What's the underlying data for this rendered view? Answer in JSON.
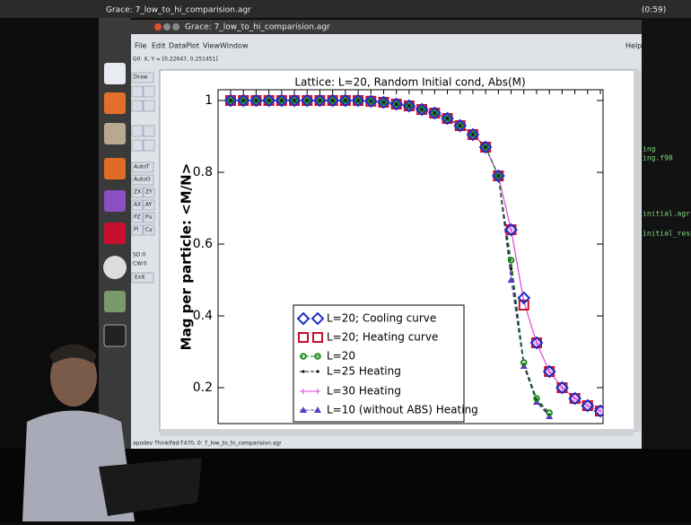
{
  "desktop": {
    "top_bar_title": "Grace: 7_low_to_hi_comparision.agr",
    "clock": "(0:59)"
  },
  "window": {
    "title": "Grace: 7_low_to_hi_comparision.agr",
    "menu": [
      "File",
      "Edit",
      "Data",
      "Plot",
      "View",
      "Window"
    ],
    "help": "Help",
    "coords": "G0: X, Y = [0.22647, 0.251451]",
    "tools": [
      "Draw",
      "AutoT",
      "AutoO",
      "ZX",
      "ZY",
      "AX",
      "AY",
      "PZ",
      "Pu",
      "Pl",
      "Cy"
    ],
    "info": [
      "SD:0",
      "CW:0"
    ],
    "exit": "Exit",
    "status": "apodev ThinkPad-T470, 0: 7_low_to_hi_comparision.agr"
  },
  "terminal": {
    "lines": [
      "ing",
      "ing.f90",
      "initial.agr",
      "initial_resp"
    ]
  },
  "chart_data": {
    "type": "line",
    "title": "Lattice: L=20,    Random Initial cond,    Abs(M)",
    "y_label": "Mag per particle:  <M/N>",
    "categories": [
      null,
      null,
      null,
      null,
      null,
      null,
      null,
      null,
      null,
      null,
      null,
      null,
      null,
      null,
      null,
      null,
      null,
      null,
      null,
      null,
      null,
      null,
      null,
      null,
      null,
      null,
      null,
      null,
      null,
      null
    ],
    "ylim": [
      0.1,
      1.03
    ],
    "yticks": [
      0.2,
      0.4,
      0.6,
      0.8,
      1
    ],
    "legend": "lower-left",
    "series": [
      {
        "name": "L=20; Cooling curve",
        "color": "#1d2fc8",
        "marker": "diamond",
        "line": false,
        "values": [
          1,
          1,
          1,
          1,
          1,
          1,
          1,
          1,
          1,
          1,
          1,
          0.998,
          0.995,
          0.99,
          0.985,
          0.975,
          0.965,
          0.95,
          0.93,
          0.905,
          0.87,
          0.79,
          0.64,
          0.45,
          0.325,
          0.245,
          0.2,
          0.17,
          0.15,
          0.135
        ]
      },
      {
        "name": "L=20; Heating curve",
        "color": "#c8102e",
        "marker": "square",
        "line": false,
        "values": [
          1,
          1,
          1,
          1,
          1,
          1,
          1,
          1,
          1,
          1,
          1,
          0.998,
          0.995,
          0.99,
          0.985,
          0.975,
          0.965,
          0.95,
          0.93,
          0.905,
          0.87,
          0.79,
          0.64,
          0.43,
          0.325,
          0.245,
          0.2,
          0.17,
          0.15,
          0.135
        ]
      },
      {
        "name": "L=20",
        "color": "#1a8a1a",
        "marker": "circle",
        "line": true,
        "dash": true,
        "values": [
          1,
          1,
          1,
          1,
          1,
          1,
          1,
          1,
          1,
          1,
          1,
          0.998,
          0.995,
          0.99,
          0.985,
          0.975,
          0.965,
          0.95,
          0.93,
          0.905,
          0.87,
          0.79,
          0.555,
          0.27,
          0.17,
          0.13,
          null,
          null,
          null,
          null
        ]
      },
      {
        "name": "L=25 Heating",
        "color": "#111111",
        "marker": "dot",
        "line": true,
        "dash": true,
        "values": [
          1,
          1,
          1,
          1,
          1,
          1,
          1,
          1,
          1,
          1,
          1,
          0.998,
          0.995,
          0.99,
          0.985,
          0.975,
          0.965,
          0.95,
          0.93,
          0.905,
          0.87,
          0.79,
          0.53,
          0.265,
          0.165,
          0.125,
          null,
          null,
          null,
          null
        ]
      },
      {
        "name": "L=30 Heating",
        "color": "#e040e0",
        "marker": "plus",
        "line": true,
        "values": [
          1,
          1,
          1,
          1,
          1,
          1,
          1,
          1,
          1,
          1,
          1,
          0.998,
          0.995,
          0.99,
          0.985,
          0.975,
          0.965,
          0.95,
          0.93,
          0.905,
          0.87,
          0.79,
          0.64,
          0.44,
          0.325,
          0.245,
          0.2,
          0.17,
          0.15,
          0.135
        ]
      },
      {
        "name": "L=10 (without ABS) Heating",
        "color": "#5a3cc0",
        "marker": "triangle",
        "line": true,
        "dash": true,
        "values": [
          1,
          1,
          1,
          1,
          1,
          1,
          1,
          1,
          1,
          1,
          1,
          0.998,
          0.995,
          0.99,
          0.985,
          0.975,
          0.965,
          0.95,
          0.93,
          0.905,
          0.87,
          0.79,
          0.5,
          0.26,
          0.16,
          0.12,
          null,
          null,
          null,
          null
        ]
      }
    ]
  }
}
